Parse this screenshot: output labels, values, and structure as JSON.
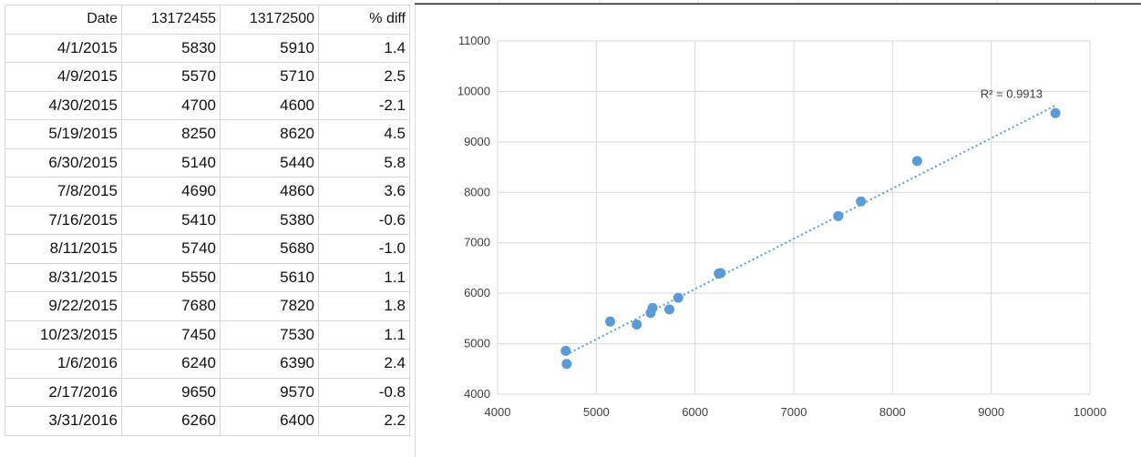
{
  "table": {
    "headers": [
      "Date",
      "13172455",
      "13172500",
      "% diff"
    ],
    "rows": [
      [
        "4/1/2015",
        "5830",
        "5910",
        "1.4"
      ],
      [
        "4/9/2015",
        "5570",
        "5710",
        "2.5"
      ],
      [
        "4/30/2015",
        "4700",
        "4600",
        "-2.1"
      ],
      [
        "5/19/2015",
        "8250",
        "8620",
        "4.5"
      ],
      [
        "6/30/2015",
        "5140",
        "5440",
        "5.8"
      ],
      [
        "7/8/2015",
        "4690",
        "4860",
        "3.6"
      ],
      [
        "7/16/2015",
        "5410",
        "5380",
        "-0.6"
      ],
      [
        "8/11/2015",
        "5740",
        "5680",
        "-1.0"
      ],
      [
        "8/31/2015",
        "5550",
        "5610",
        "1.1"
      ],
      [
        "9/22/2015",
        "7680",
        "7820",
        "1.8"
      ],
      [
        "10/23/2015",
        "7450",
        "7530",
        "1.1"
      ],
      [
        "1/6/2016",
        "6240",
        "6390",
        "2.4"
      ],
      [
        "2/17/2016",
        "9650",
        "9570",
        "-0.8"
      ],
      [
        "3/31/2016",
        "6260",
        "6400",
        "2.2"
      ]
    ]
  },
  "chart_data": {
    "type": "scatter",
    "title": "",
    "xlabel": "",
    "ylabel": "",
    "xlim": [
      4000,
      10000
    ],
    "ylim": [
      4000,
      11000
    ],
    "xticks": [
      4000,
      5000,
      6000,
      7000,
      8000,
      9000,
      10000
    ],
    "yticks": [
      4000,
      5000,
      6000,
      7000,
      8000,
      9000,
      10000,
      11000
    ],
    "grid": true,
    "legend": "none",
    "point_color": "#5b9bd5",
    "trendline": {
      "type": "linear",
      "style": "dotted",
      "color": "#5b9bd5",
      "r2_label": "R² = 0.9913",
      "from": [
        4690,
        4780
      ],
      "to": [
        9650,
        9720
      ]
    },
    "series": [
      {
        "x": [
          5830,
          5570,
          4700,
          8250,
          5140,
          4690,
          5410,
          5740,
          5550,
          7680,
          7450,
          6240,
          9650,
          6260
        ],
        "y": [
          5910,
          5710,
          4600,
          8620,
          5440,
          4860,
          5380,
          5680,
          5610,
          7820,
          7530,
          6390,
          9570,
          6400
        ]
      }
    ]
  }
}
